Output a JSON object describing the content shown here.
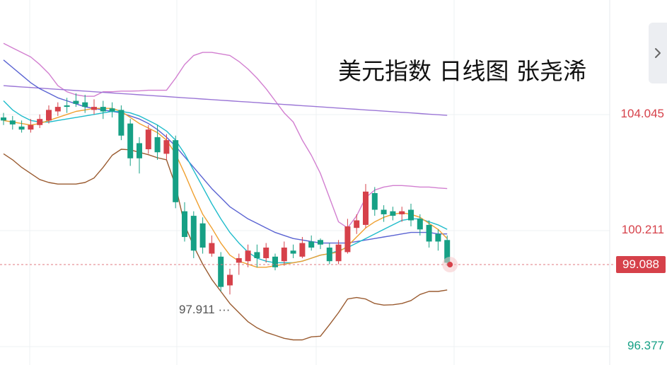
{
  "title": "美元指数 日线图 张尧浠",
  "chart_data": {
    "type": "candlestick",
    "ylim": [
      96.1,
      106.3
    ],
    "ticks": [
      {
        "value": 104.045,
        "label": "104.045",
        "color": "#d6414a"
      },
      {
        "value": 100.211,
        "label": "100.211",
        "color": "#d6414a"
      },
      {
        "value": 96.377,
        "label": "96.377",
        "color": "#16a085"
      }
    ],
    "last_price": {
      "value": 99.088,
      "label": "99.088"
    },
    "low_annotation": {
      "value": 97.911,
      "label": "97.911 ···"
    },
    "up_color": "#d6414a",
    "down_color": "#16a085",
    "candles": [
      [
        103.95,
        103.85,
        104.1,
        103.7
      ],
      [
        103.85,
        103.72,
        104.0,
        103.55
      ],
      [
        103.65,
        103.55,
        103.85,
        103.45
      ],
      [
        103.55,
        103.7,
        103.9,
        103.45
      ],
      [
        103.7,
        103.9,
        104.05,
        103.6
      ],
      [
        103.85,
        104.2,
        104.35,
        103.75
      ],
      [
        104.15,
        104.3,
        104.45,
        104.0
      ],
      [
        104.35,
        104.3,
        104.6,
        104.1
      ],
      [
        104.5,
        104.4,
        104.75,
        104.3
      ],
      [
        104.45,
        104.3,
        104.7,
        104.1
      ],
      [
        104.2,
        104.3,
        104.55,
        104.05
      ],
      [
        104.3,
        104.15,
        104.5,
        103.9
      ],
      [
        104.25,
        104.15,
        104.45,
        103.95
      ],
      [
        104.2,
        103.35,
        104.35,
        103.2
      ],
      [
        103.75,
        102.6,
        103.9,
        102.35
      ],
      [
        103.1,
        102.6,
        103.3,
        102.1
      ],
      [
        102.9,
        103.55,
        103.7,
        102.75
      ],
      [
        103.3,
        102.8,
        103.7,
        102.55
      ],
      [
        102.75,
        103.2,
        103.4,
        102.55
      ],
      [
        103.2,
        101.15,
        103.35,
        100.95
      ],
      [
        100.85,
        100.0,
        101.15,
        99.85
      ],
      [
        100.7,
        99.55,
        100.85,
        99.3
      ],
      [
        100.45,
        99.65,
        100.65,
        99.45
      ],
      [
        99.45,
        99.8,
        100.05,
        99.35
      ],
      [
        99.35,
        98.35,
        99.5,
        98.2
      ],
      [
        98.4,
        98.75,
        98.95,
        98.1
      ],
      [
        99.15,
        99.3,
        99.45,
        98.75
      ],
      [
        99.2,
        99.55,
        99.75,
        99.0
      ],
      [
        99.5,
        99.3,
        99.75,
        99.0
      ],
      [
        99.3,
        99.65,
        99.8,
        99.15
      ],
      [
        99.35,
        99.0,
        99.45,
        98.9
      ],
      [
        99.2,
        99.65,
        99.85,
        99.05
      ],
      [
        99.55,
        99.45,
        99.75,
        99.3
      ],
      [
        99.35,
        99.8,
        100.0,
        99.3
      ],
      [
        99.85,
        99.65,
        100.05,
        99.55
      ],
      [
        99.9,
        99.75,
        99.95,
        99.6
      ],
      [
        99.65,
        99.2,
        99.8,
        99.1
      ],
      [
        99.2,
        99.75,
        99.9,
        99.1
      ],
      [
        99.5,
        100.35,
        100.6,
        99.45
      ],
      [
        100.3,
        100.55,
        100.75,
        100.1
      ],
      [
        100.4,
        101.5,
        101.75,
        100.3
      ],
      [
        101.45,
        100.9,
        101.65,
        100.7
      ],
      [
        100.9,
        100.75,
        101.05,
        100.5
      ],
      [
        100.85,
        100.7,
        101.0,
        100.55
      ],
      [
        100.75,
        100.85,
        101.0,
        100.5
      ],
      [
        100.9,
        100.55,
        101.1,
        100.35
      ],
      [
        100.6,
        100.25,
        100.75,
        100.05
      ],
      [
        100.4,
        99.85,
        100.55,
        99.65
      ],
      [
        100.1,
        99.85,
        100.25,
        99.55
      ],
      [
        99.9,
        99.15,
        100.05,
        99.05
      ]
    ],
    "ma_fast": [
      103.85,
      103.8,
      103.75,
      103.7,
      103.75,
      103.85,
      103.95,
      104.05,
      104.15,
      104.2,
      104.25,
      104.25,
      104.25,
      104.15,
      103.95,
      103.75,
      103.6,
      103.45,
      103.2,
      102.75,
      102.1,
      101.4,
      100.75,
      100.3,
      99.8,
      99.4,
      99.2,
      99.1,
      99.0,
      99.0,
      99.05,
      99.1,
      99.15,
      99.2,
      99.3,
      99.4,
      99.45,
      99.5,
      99.7,
      100.0,
      100.3,
      100.5,
      100.65,
      100.75,
      100.8,
      100.75,
      100.65,
      100.45,
      100.25,
      99.95
    ],
    "ma_mid": [
      104.5,
      104.2,
      104.0,
      103.85,
      103.8,
      103.8,
      103.85,
      103.9,
      103.95,
      104.0,
      104.05,
      104.1,
      104.15,
      104.15,
      104.1,
      104.0,
      103.85,
      103.7,
      103.5,
      103.2,
      102.75,
      102.2,
      101.65,
      101.1,
      100.6,
      100.15,
      99.8,
      99.5,
      99.3,
      99.2,
      99.15,
      99.15,
      99.15,
      99.2,
      99.3,
      99.4,
      99.45,
      99.55,
      99.65,
      99.8,
      99.95,
      100.1,
      100.25,
      100.4,
      100.55,
      100.6,
      100.6,
      100.5,
      100.4,
      100.25
    ],
    "ma_slow": [
      105.85,
      105.6,
      105.35,
      105.1,
      104.9,
      104.75,
      104.6,
      104.5,
      104.4,
      104.3,
      104.25,
      104.2,
      104.15,
      104.1,
      104.0,
      103.9,
      103.75,
      103.55,
      103.3,
      103.0,
      102.65,
      102.3,
      101.95,
      101.6,
      101.3,
      101.0,
      100.8,
      100.6,
      100.45,
      100.3,
      100.15,
      100.05,
      99.95,
      99.9,
      99.85,
      99.8,
      99.8,
      99.8,
      99.8,
      99.85,
      99.9,
      99.95,
      100.0,
      100.05,
      100.1,
      100.15,
      100.15,
      100.15,
      100.1,
      100.1
    ],
    "ma_long": [
      105.0,
      104.98,
      104.96,
      104.94,
      104.92,
      104.9,
      104.88,
      104.86,
      104.84,
      104.82,
      104.8,
      104.78,
      104.76,
      104.74,
      104.72,
      104.7,
      104.68,
      104.66,
      104.64,
      104.62,
      104.6,
      104.58,
      104.56,
      104.54,
      104.52,
      104.5,
      104.48,
      104.46,
      104.44,
      104.42,
      104.4,
      104.38,
      104.36,
      104.34,
      104.32,
      104.3,
      104.28,
      104.26,
      104.24,
      104.22,
      104.2,
      104.18,
      104.16,
      104.14,
      104.12,
      104.1,
      104.08,
      104.06,
      104.04,
      104.02
    ],
    "boll_upper": [
      106.4,
      106.25,
      106.1,
      105.95,
      105.7,
      105.4,
      105.0,
      104.8,
      104.7,
      104.65,
      104.65,
      104.8,
      104.8,
      104.82,
      104.82,
      104.83,
      104.85,
      104.85,
      104.85,
      105.25,
      105.7,
      106.0,
      106.1,
      106.1,
      106.05,
      106.0,
      105.8,
      105.55,
      105.25,
      104.9,
      104.5,
      104.1,
      103.8,
      103.2,
      102.7,
      102.1,
      101.3,
      100.5,
      100.3,
      100.7,
      101.3,
      101.55,
      101.65,
      101.7,
      101.7,
      101.68,
      101.65,
      101.65,
      101.62,
      101.6
    ],
    "boll_lower": [
      102.75,
      102.55,
      102.3,
      102.1,
      101.9,
      101.8,
      101.75,
      101.75,
      101.75,
      101.8,
      101.95,
      102.3,
      102.7,
      102.9,
      102.88,
      102.8,
      102.72,
      102.62,
      102.55,
      101.7,
      100.4,
      99.7,
      99.1,
      98.6,
      98.2,
      97.8,
      97.5,
      97.2,
      97.0,
      96.85,
      96.75,
      96.65,
      96.6,
      96.6,
      96.7,
      96.72,
      97.1,
      97.5,
      97.95,
      98.0,
      97.95,
      97.8,
      97.75,
      97.76,
      97.8,
      97.9,
      98.1,
      98.2,
      98.2,
      98.25
    ]
  }
}
